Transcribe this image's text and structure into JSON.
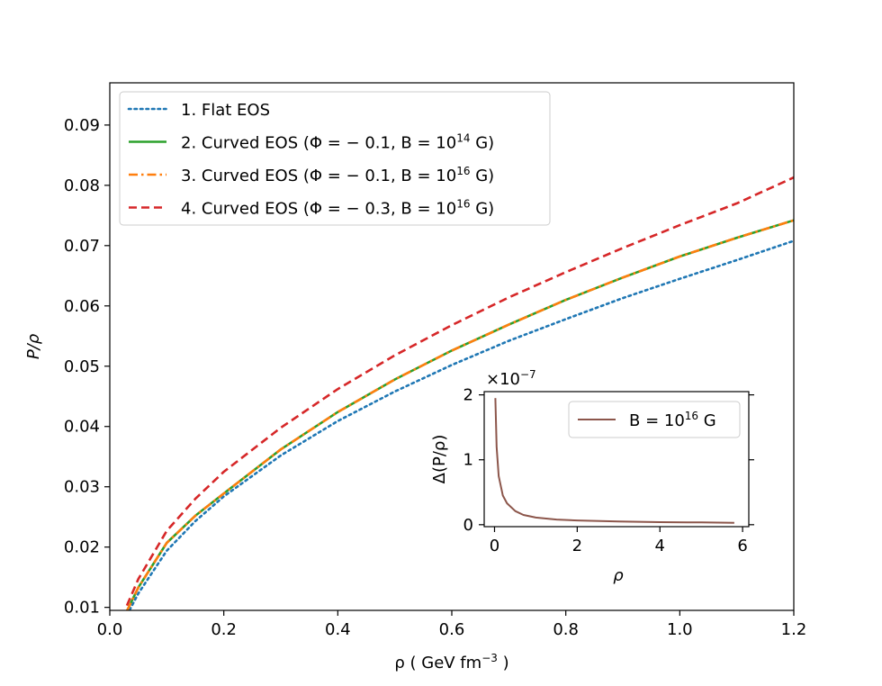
{
  "chart_data": [
    {
      "type": "line",
      "title": "",
      "xlabel": "ρ ( GeV fm⁻³ )",
      "ylabel": "P/ρ",
      "xlim": [
        0.0,
        1.2
      ],
      "ylim": [
        0.0095,
        0.097
      ],
      "xticks": [
        "0.0",
        "0.2",
        "0.4",
        "0.6",
        "0.8",
        "1.0",
        "1.2"
      ],
      "yticks": [
        "0.01",
        "0.02",
        "0.03",
        "0.04",
        "0.05",
        "0.06",
        "0.07",
        "0.08",
        "0.09"
      ],
      "grid": false,
      "legend_position": "top-left",
      "x": [
        0.03,
        0.05,
        0.1,
        0.15,
        0.2,
        0.3,
        0.4,
        0.5,
        0.6,
        0.7,
        0.8,
        0.9,
        1.0,
        1.1,
        1.2
      ],
      "series": [
        {
          "name": "1. Flat EOS",
          "color": "#1f77b4",
          "style": "dotted",
          "values": [
            0.0087,
            0.0123,
            0.0194,
            0.0243,
            0.0284,
            0.0352,
            0.0409,
            0.0458,
            0.0502,
            0.0542,
            0.0578,
            0.0613,
            0.0645,
            0.0676,
            0.0708
          ]
        },
        {
          "name": "2. Curved EOS (Φ = − 0.1, B = 10¹⁴ G)",
          "color": "#2ca02c",
          "style": "solid",
          "values": [
            0.0094,
            0.0133,
            0.0207,
            0.0252,
            0.0289,
            0.0362,
            0.0424,
            0.0478,
            0.0526,
            0.0569,
            0.061,
            0.0647,
            0.0682,
            0.0713,
            0.0742
          ]
        },
        {
          "name": "3. Curved EOS (Φ = − 0.1, B = 10¹⁶ G)",
          "color": "#ff7f0e",
          "style": "dashdot",
          "values": [
            0.0094,
            0.0133,
            0.0207,
            0.0252,
            0.0289,
            0.0362,
            0.0424,
            0.0478,
            0.0526,
            0.0569,
            0.061,
            0.0647,
            0.0682,
            0.0713,
            0.0742
          ]
        },
        {
          "name": "4. Curved EOS (Φ = − 0.3, B = 10¹⁶ G)",
          "color": "#d62728",
          "style": "dashed",
          "values": [
            0.0103,
            0.0147,
            0.0227,
            0.028,
            0.0325,
            0.0398,
            0.0462,
            0.0518,
            0.0568,
            0.0614,
            0.0656,
            0.0696,
            0.0734,
            0.077,
            0.0813
          ]
        }
      ]
    },
    {
      "type": "line",
      "title": "",
      "xlabel": "ρ",
      "ylabel": "Δ(P/ρ)",
      "axis_multiplier": "×10⁻⁷",
      "xlim": [
        -0.25,
        6.15
      ],
      "ylim": [
        -0.03,
        2.05
      ],
      "xticks": [
        "0",
        "2",
        "4",
        "6"
      ],
      "yticks": [
        "0",
        "1",
        "2"
      ],
      "grid": false,
      "legend_position": "top-right",
      "x": [
        0.02,
        0.05,
        0.1,
        0.2,
        0.3,
        0.5,
        0.7,
        1.0,
        1.5,
        2.0,
        3.0,
        4.0,
        5.0,
        5.8
      ],
      "series": [
        {
          "name": "B = 10¹⁶ G",
          "color": "#8c564b",
          "style": "solid",
          "values": [
            1.95,
            1.2,
            0.75,
            0.45,
            0.33,
            0.21,
            0.15,
            0.11,
            0.08,
            0.065,
            0.05,
            0.04,
            0.035,
            0.03
          ]
        }
      ]
    }
  ]
}
